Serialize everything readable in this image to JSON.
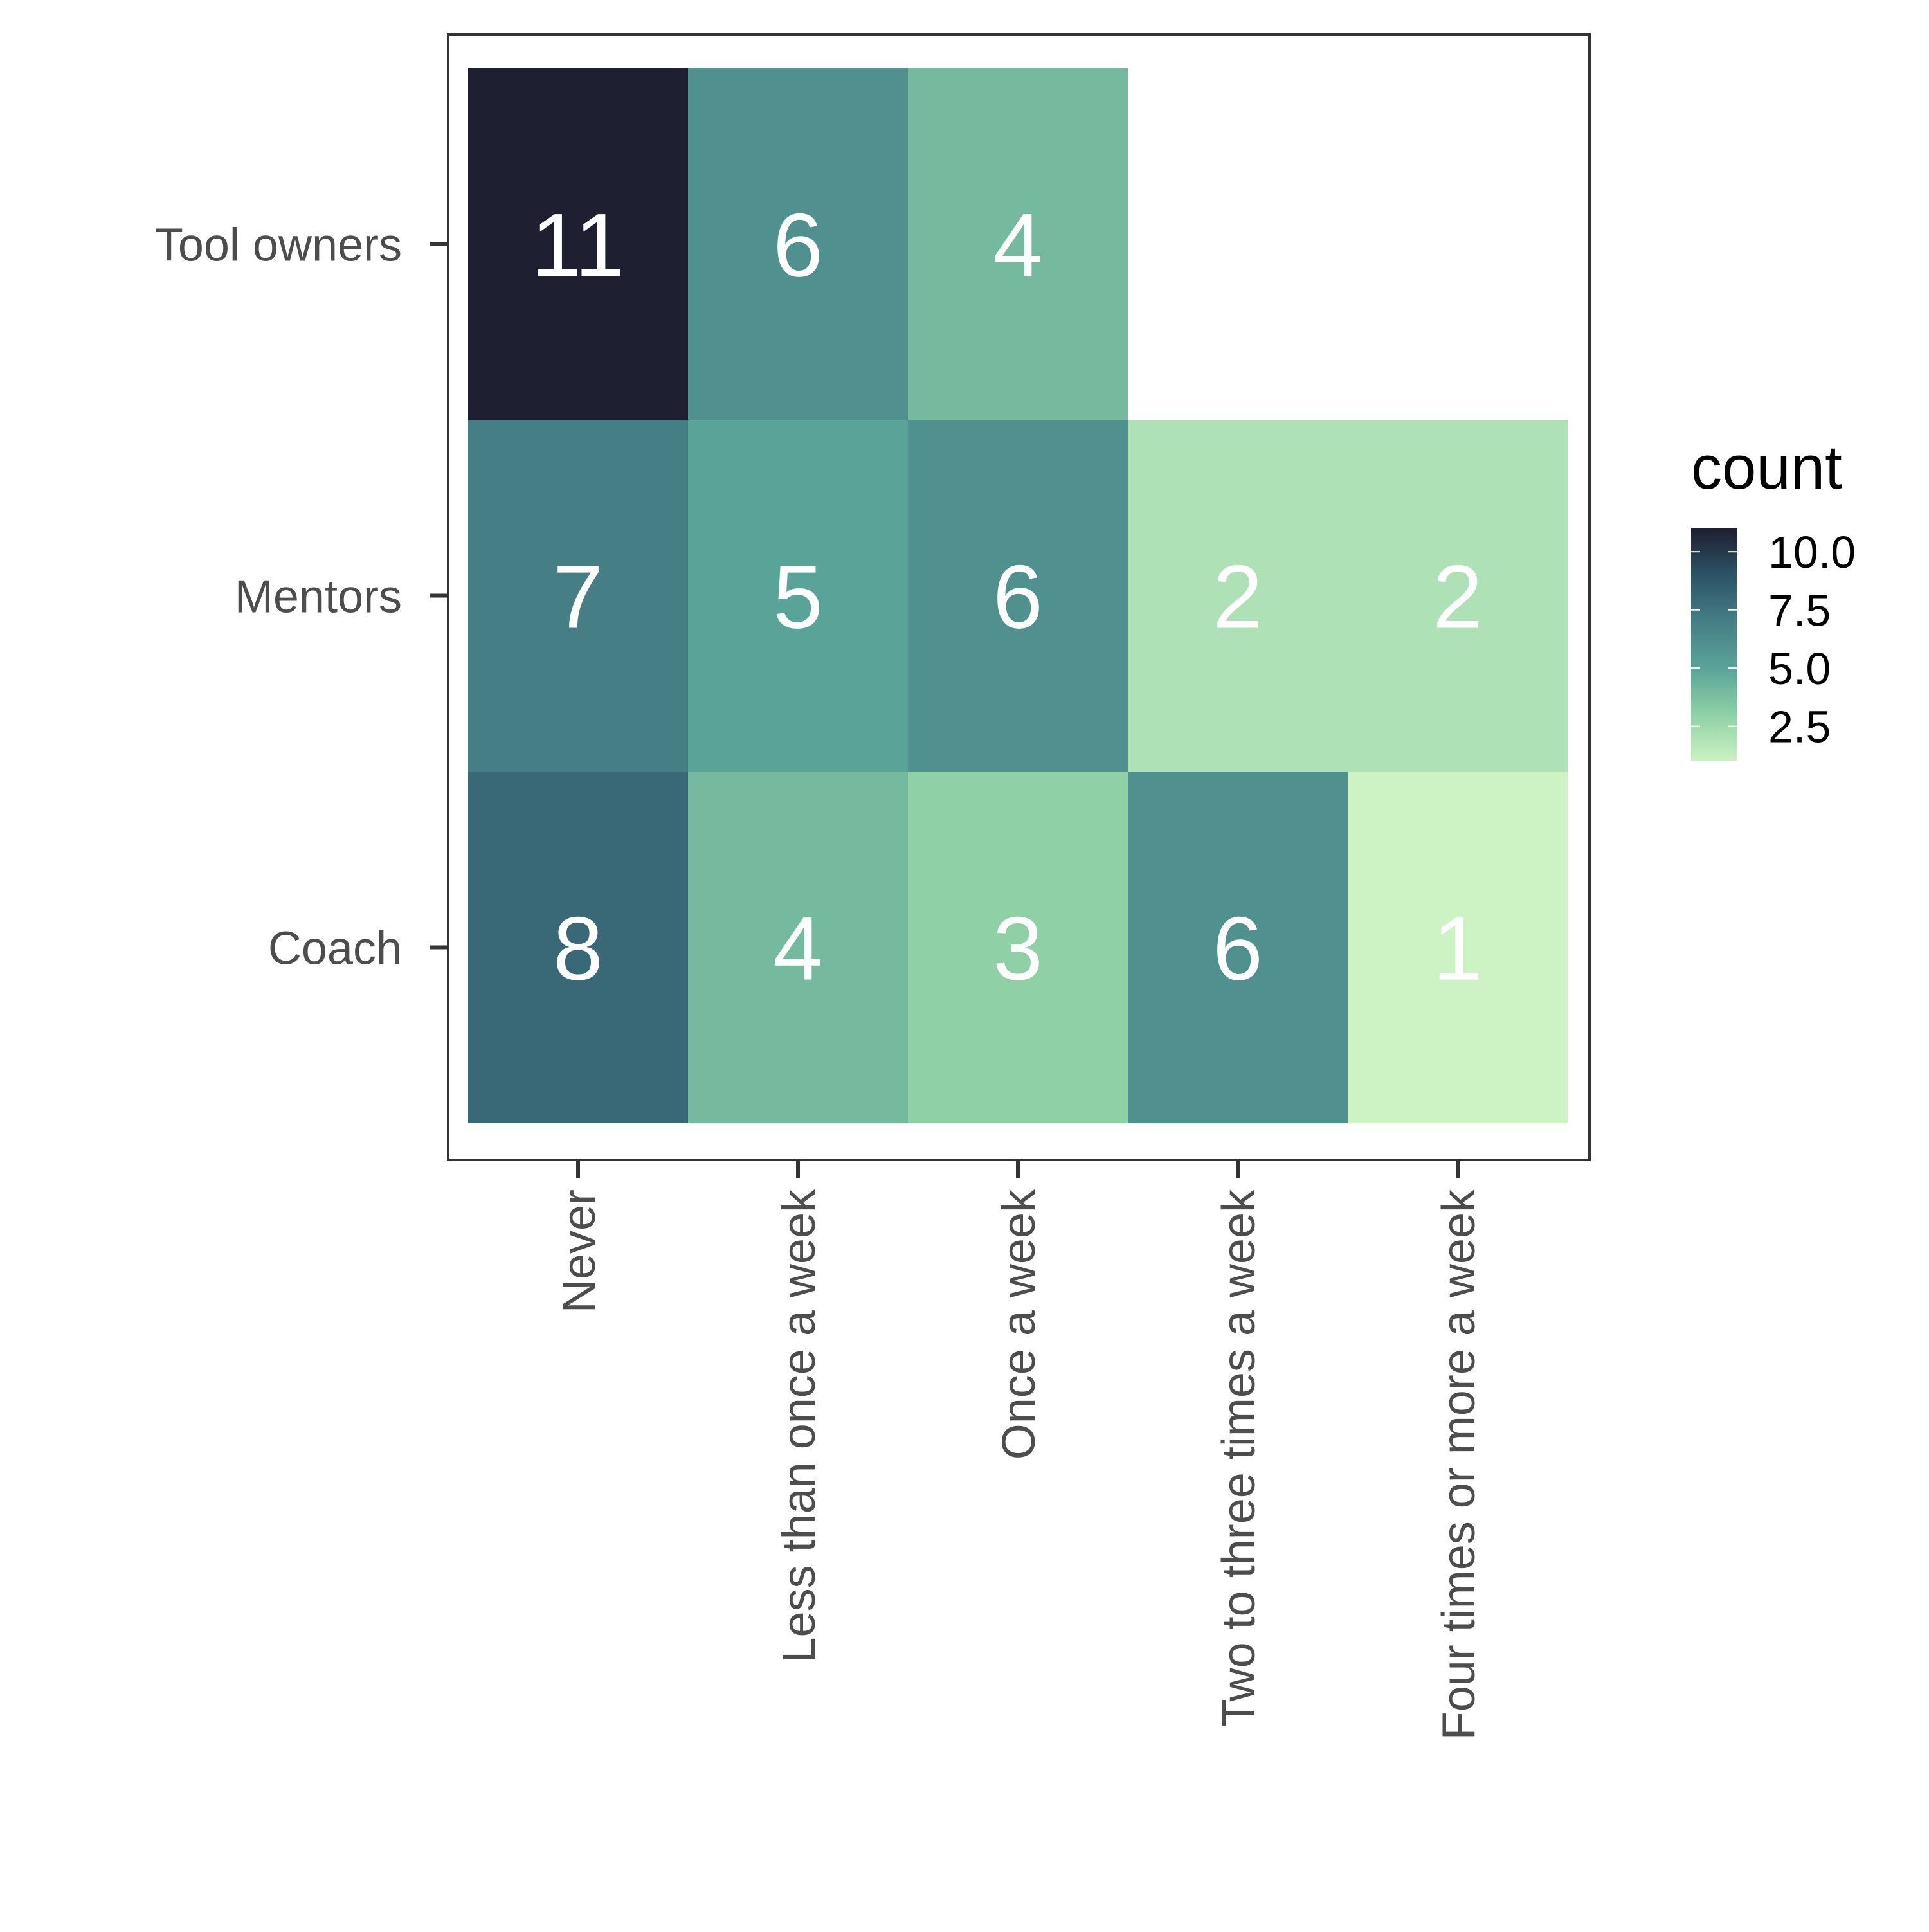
{
  "chart_data": {
    "type": "heatmap",
    "title": "",
    "xlabel": "",
    "ylabel": "",
    "x_categories": [
      "Never",
      "Less than once a week",
      "Once a week",
      "Two to three times a week",
      "Four times or more a week"
    ],
    "y_categories": [
      "Tool owners",
      "Mentors",
      "Coach"
    ],
    "values": [
      [
        11,
        6,
        4,
        null,
        null
      ],
      [
        7,
        5,
        6,
        2,
        2
      ],
      [
        8,
        4,
        3,
        6,
        1
      ]
    ],
    "color_range": [
      1,
      11
    ],
    "colors": {
      "low": "#cdf2c3",
      "mid_low": "#8fd0a6",
      "mid": "#5aa398",
      "mid_high": "#467e85",
      "high": "#1f2d49",
      "max": "#1e1f30",
      "text": "#ffffff",
      "axis": "#333333"
    },
    "legend": {
      "title": "count",
      "position": "right",
      "ticks": [
        {
          "value": 10.0,
          "label": "10.0"
        },
        {
          "value": 7.5,
          "label": "7.5"
        },
        {
          "value": 5.0,
          "label": "5.0"
        },
        {
          "value": 2.5,
          "label": "2.5"
        }
      ]
    }
  }
}
